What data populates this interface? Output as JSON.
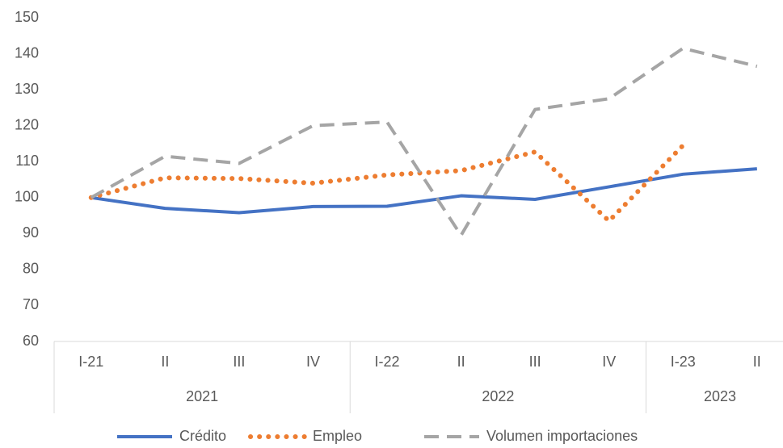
{
  "chart_data": {
    "type": "line",
    "categories": [
      "I-21",
      "II",
      "III",
      "IV",
      "I-22",
      "II",
      "III",
      "IV",
      "I-23",
      "II"
    ],
    "category_groups": [
      "2021",
      "2021",
      "2021",
      "2021",
      "2022",
      "2022",
      "2022",
      "2022",
      "2023",
      "2023"
    ],
    "series": [
      {
        "name": "Crédito",
        "color": "#4472c4",
        "style": "solid",
        "values": [
          100,
          97,
          95.8,
          97.5,
          97.6,
          100.5,
          99.5,
          103,
          106.5,
          108
        ]
      },
      {
        "name": "Empleo",
        "color": "#ed7d31",
        "style": "dotted",
        "values": [
          100,
          105.5,
          105.3,
          104,
          106.3,
          107.5,
          112.7,
          93.5,
          114.5,
          null
        ]
      },
      {
        "name": "Volumen importaciones",
        "color": "#a5a5a5",
        "style": "dashed",
        "values": [
          100,
          111.5,
          109.5,
          120,
          121,
          89.5,
          124.5,
          127.5,
          141.5,
          136.5
        ]
      }
    ],
    "ylim": [
      60,
      150
    ],
    "yticks": [
      60,
      70,
      80,
      90,
      100,
      110,
      120,
      130,
      140,
      150
    ],
    "grid": false,
    "legend": "bottom"
  }
}
